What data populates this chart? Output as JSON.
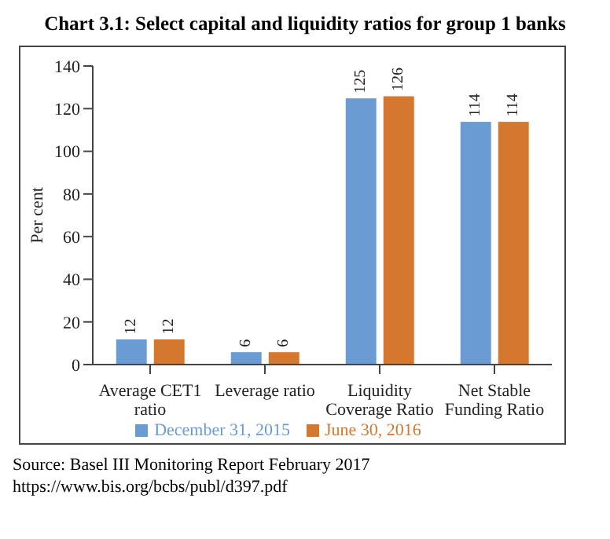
{
  "chart_data": {
    "type": "bar",
    "title": "Chart 3.1: Select capital and liquidity ratios for group 1 banks",
    "ylabel": "Per cent",
    "categories": [
      "Average CET1 ratio",
      "Leverage ratio",
      "Liquidity Coverage Ratio",
      "Net Stable Funding Ratio"
    ],
    "series": [
      {
        "name": "December 31, 2015",
        "color": "#6a9bd3",
        "values": [
          12,
          6,
          125,
          114
        ]
      },
      {
        "name": "June 30, 2016",
        "color": "#d4782f",
        "values": [
          12,
          6,
          126,
          114
        ]
      }
    ],
    "ylim": [
      0,
      140
    ],
    "yticks": [
      0,
      20,
      40,
      60,
      80,
      100,
      120,
      140
    ],
    "data_labels": true,
    "legend": "bottom",
    "grid": false,
    "annotations": [
      "Source: Basel III Monitoring Report February 2017 https://www.bis.org/bcbs/publ/d397.pdf"
    ]
  }
}
